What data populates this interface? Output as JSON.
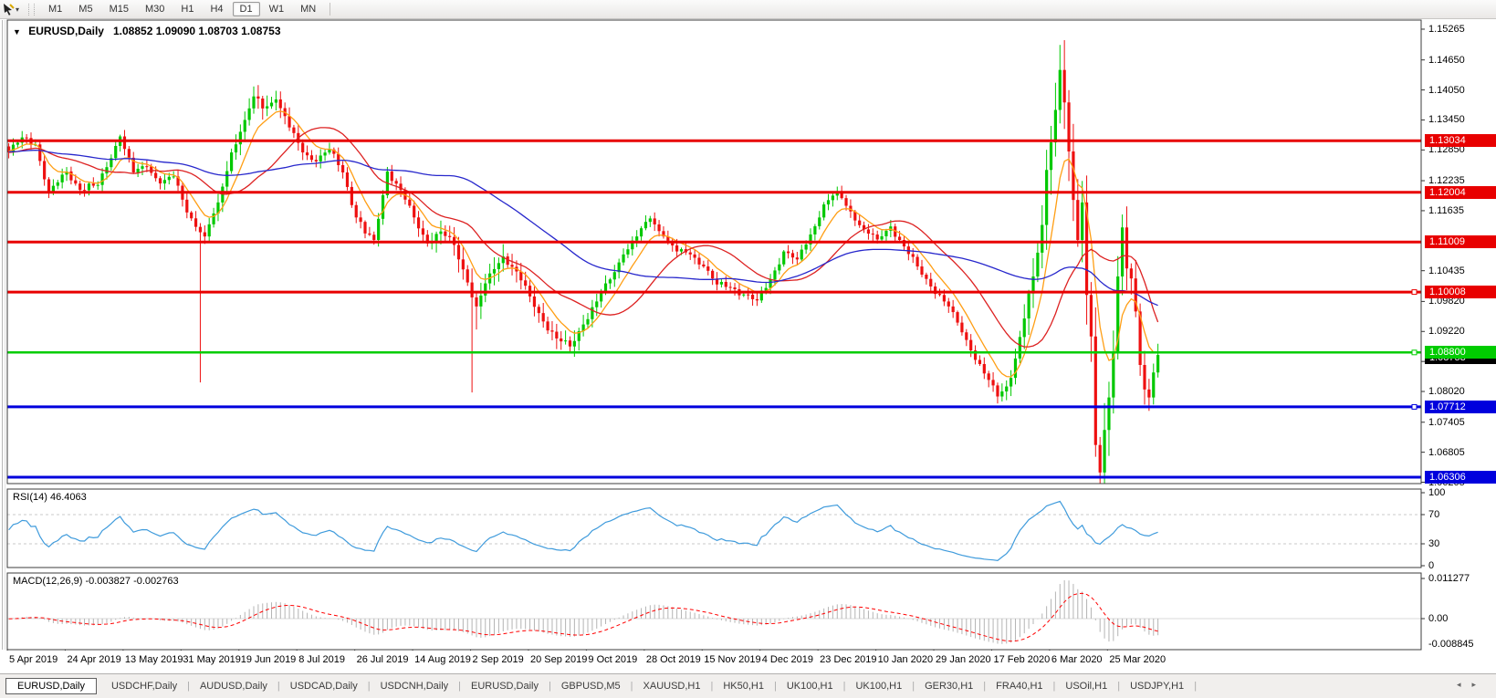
{
  "toolbar": {
    "timeframes": [
      "M1",
      "M5",
      "M15",
      "M30",
      "H1",
      "H4",
      "D1",
      "W1",
      "MN"
    ],
    "selected": "D1",
    "caret": "▾"
  },
  "header": {
    "collapse_icon": "▼",
    "symbol": "EURUSD,Daily",
    "ohlc": "1.08852 1.09090 1.08703 1.08753"
  },
  "price_axis": {
    "ticks": [
      "1.15265",
      "1.14650",
      "1.14050",
      "1.13450",
      "1.12850",
      "1.12235",
      "1.11635",
      "1.10435",
      "1.09820",
      "1.09220",
      "1.08620",
      "1.08020",
      "1.07405",
      "1.06805",
      "1.06205"
    ]
  },
  "current_price": {
    "label": "1.08753",
    "value": 1.08753,
    "color": "#000000"
  },
  "x_axis": {
    "labels": [
      "5 Apr 2019",
      "24 Apr 2019",
      "13 May 2019",
      "31 May 2019",
      "19 Jun 2019",
      "8 Jul 2019",
      "26 Jul 2019",
      "14 Aug 2019",
      "2 Sep 2019",
      "20 Sep 2019",
      "9 Oct 2019",
      "28 Oct 2019",
      "15 Nov 2019",
      "4 Dec 2019",
      "23 Dec 2019",
      "10 Jan 2020",
      "29 Jan 2020",
      "17 Feb 2020",
      "6 Mar 2020",
      "25 Mar 2020"
    ]
  },
  "rsi": {
    "title": "RSI(14) 46.4063"
  },
  "macd": {
    "title": "MACD(12,26,9) -0.003827 -0.002763"
  },
  "tabs": {
    "items": [
      "EURUSD,Daily",
      "USDCHF,Daily",
      "AUDUSD,Daily",
      "USDCAD,Daily",
      "USDCNH,Daily",
      "EURUSD,Daily",
      "GBPUSD,M5",
      "XAUUSD,H1",
      "HK50,H1",
      "UK100,H1",
      "UK100,H1",
      "GER30,H1",
      "FRA40,H1",
      "USOil,H1",
      "USDJPY,H1"
    ],
    "active": 0,
    "left_arrow": "◂",
    "right_arrow": "▸"
  },
  "chart_data": {
    "type": "candlestick",
    "symbol": "EURUSD",
    "period": "Daily",
    "last_ohlc": {
      "open": 1.08852,
      "high": 1.0909,
      "low": 1.08703,
      "close": 1.08753
    },
    "price_range": [
      1.06178,
      1.15447
    ],
    "bars_per_label": 13,
    "x_labels_note": "labels every 13 daily bars, see x_axis.labels",
    "close_waypoints": [
      [
        0,
        1.128
      ],
      [
        3,
        1.131
      ],
      [
        6,
        1.1296
      ],
      [
        9,
        1.12
      ],
      [
        13,
        1.1242
      ],
      [
        16,
        1.1205
      ],
      [
        20,
        1.1215
      ],
      [
        25,
        1.1312
      ],
      [
        28,
        1.124
      ],
      [
        31,
        1.1252
      ],
      [
        34,
        1.1218
      ],
      [
        37,
        1.1232
      ],
      [
        40,
        1.116
      ],
      [
        44,
        1.1112
      ],
      [
        47,
        1.118
      ],
      [
        50,
        1.128
      ],
      [
        53,
        1.1345
      ],
      [
        55,
        1.1392
      ],
      [
        57,
        1.1368
      ],
      [
        60,
        1.1386
      ],
      [
        63,
        1.133
      ],
      [
        66,
        1.128
      ],
      [
        69,
        1.1262
      ],
      [
        72,
        1.1286
      ],
      [
        75,
        1.124
      ],
      [
        78,
        1.115
      ],
      [
        80,
        1.1118
      ],
      [
        82,
        1.1105
      ],
      [
        85,
        1.1242
      ],
      [
        88,
        1.1205
      ],
      [
        91,
        1.115
      ],
      [
        94,
        1.1098
      ],
      [
        97,
        1.1122
      ],
      [
        100,
        1.1095
      ],
      [
        103,
        1.102
      ],
      [
        105,
        1.0972
      ],
      [
        108,
        1.1038
      ],
      [
        111,
        1.1072
      ],
      [
        114,
        1.1042
      ],
      [
        117,
        1.0992
      ],
      [
        120,
        1.0942
      ],
      [
        123,
        1.0908
      ],
      [
        126,
        1.0892
      ],
      [
        129,
        1.0936
      ],
      [
        132,
        1.0982
      ],
      [
        135,
        1.1026
      ],
      [
        138,
        1.1076
      ],
      [
        141,
        1.1112
      ],
      [
        144,
        1.1148
      ],
      [
        147,
        1.1112
      ],
      [
        150,
        1.1082
      ],
      [
        153,
        1.1076
      ],
      [
        156,
        1.1052
      ],
      [
        159,
        1.1016
      ],
      [
        162,
        1.101
      ],
      [
        165,
        1.0996
      ],
      [
        168,
        1.0984
      ],
      [
        171,
        1.1026
      ],
      [
        174,
        1.1082
      ],
      [
        177,
        1.1066
      ],
      [
        180,
        1.1116
      ],
      [
        183,
        1.1176
      ],
      [
        186,
        1.1202
      ],
      [
        189,
        1.1162
      ],
      [
        192,
        1.1126
      ],
      [
        195,
        1.1106
      ],
      [
        198,
        1.1132
      ],
      [
        201,
        1.1092
      ],
      [
        204,
        1.1052
      ],
      [
        207,
        1.1012
      ],
      [
        211,
        1.0972
      ],
      [
        215,
        1.0905
      ],
      [
        219,
        1.0838
      ],
      [
        222,
        1.0792
      ],
      [
        224,
        1.0812
      ],
      [
        226,
        1.0868
      ],
      [
        228,
        1.0948
      ],
      [
        230,
        1.1032
      ],
      [
        232,
        1.1135
      ],
      [
        233,
        1.1245
      ],
      [
        234,
        1.13
      ],
      [
        235,
        1.1365
      ],
      [
        236,
        1.1445
      ],
      [
        237,
        1.138
      ],
      [
        238,
        1.1282
      ],
      [
        239,
        1.1185
      ],
      [
        240,
        1.1105
      ],
      [
        241,
        1.118
      ],
      [
        242,
        1.0995
      ],
      [
        243,
        1.0912
      ],
      [
        244,
        1.0695
      ],
      [
        245,
        1.064
      ],
      [
        246,
        1.0725
      ],
      [
        247,
        1.079
      ],
      [
        248,
        1.0882
      ],
      [
        249,
        1.1032
      ],
      [
        250,
        1.113
      ],
      [
        251,
        1.1048
      ],
      [
        252,
        1.1028
      ],
      [
        253,
        1.0962
      ],
      [
        254,
        1.0855
      ],
      [
        255,
        1.0806
      ],
      [
        256,
        1.079
      ],
      [
        257,
        1.084
      ],
      [
        258,
        1.0875
      ]
    ],
    "wick_overrides": {
      "43": {
        "low": 1.082
      },
      "55": {
        "high": 1.1412
      },
      "104": {
        "low": 1.08
      },
      "105": {
        "low": 1.0926
      },
      "126": {
        "low": 1.0879
      },
      "222": {
        "low": 1.0778
      },
      "236": {
        "high": 1.1495
      },
      "245": {
        "low": 1.0637
      },
      "250": {
        "high": 1.1147
      }
    },
    "horizontal_levels": [
      {
        "price": 1.13034,
        "label": "1.13034",
        "color": "#e80000",
        "width": 3,
        "marker": false
      },
      {
        "price": 1.12004,
        "label": "1.12004",
        "color": "#e80000",
        "width": 3,
        "marker": false
      },
      {
        "price": 1.11009,
        "label": "1.11009",
        "color": "#e80000",
        "width": 3,
        "marker": false
      },
      {
        "price": 1.10008,
        "label": "1.10008",
        "color": "#e80000",
        "width": 3,
        "marker": true
      },
      {
        "price": 1.088,
        "label": "1.08800",
        "color": "#00cc00",
        "width": 2.5,
        "marker": true
      },
      {
        "price": 1.07712,
        "label": "1.07712",
        "color": "#0000dd",
        "width": 3,
        "marker": true
      },
      {
        "price": 1.06306,
        "label": "1.06306",
        "color": "#0000dd",
        "width": 3,
        "marker": false
      }
    ],
    "moving_averages": [
      {
        "type": "ema",
        "period": 8,
        "color": "#ff9e14"
      },
      {
        "type": "sma",
        "period": 21,
        "color": "#dd2222"
      },
      {
        "type": "sma",
        "period": 55,
        "color": "#2727cc"
      }
    ],
    "up_color": "#00c800",
    "down_color": "#ee1010",
    "rsi": {
      "period": 14,
      "value": 46.4063,
      "levels": [
        70,
        30
      ],
      "scale": [
        0,
        100
      ],
      "axis_ticks": [
        "100",
        "70",
        "30",
        "0"
      ],
      "color": "#3f9bdc"
    },
    "macd": {
      "fast": 12,
      "slow": 26,
      "signal": 9,
      "value": -0.003827,
      "signal_value": -0.002763,
      "scale": [
        -0.008714,
        0.012815
      ],
      "axis_ticks": [
        {
          "v": 0.011277,
          "label": "0.011277"
        },
        {
          "v": 0.0,
          "label": "0.00"
        },
        {
          "v": -0.008845,
          "label": "-0.008845"
        }
      ],
      "hist_color": "#b4b4b4",
      "signal_color": "#ff0000"
    }
  }
}
